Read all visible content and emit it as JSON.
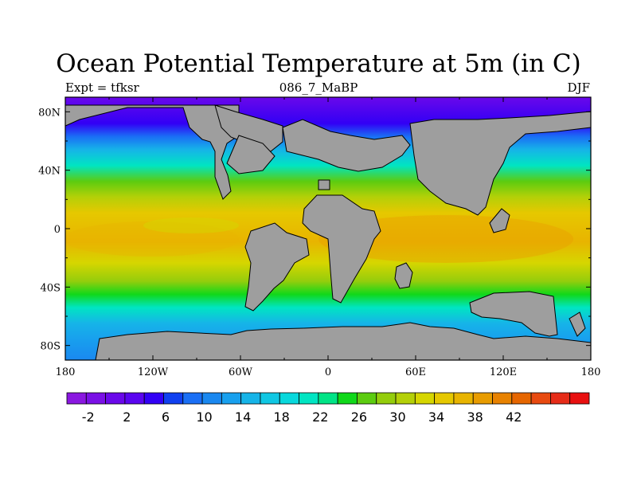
{
  "title": "Ocean Potential Temperature at 5m (in C)",
  "left_label": "Expt = tfksr",
  "center_label": "086_7_MaBP",
  "right_label": "DJF",
  "map": {
    "lon_range": [
      -180,
      180
    ],
    "lat_range": [
      -90,
      90
    ],
    "x_ticks": [
      {
        "lon": -180,
        "label": "180"
      },
      {
        "lon": -120,
        "label": "120W"
      },
      {
        "lon": -60,
        "label": "60W"
      },
      {
        "lon": 0,
        "label": "0"
      },
      {
        "lon": 60,
        "label": "60E"
      },
      {
        "lon": 120,
        "label": "120E"
      },
      {
        "lon": 180,
        "label": "180"
      }
    ],
    "y_ticks": [
      {
        "lat": 80,
        "label": "80N"
      },
      {
        "lat": 40,
        "label": "40N"
      },
      {
        "lat": 0,
        "label": "0"
      },
      {
        "lat": -40,
        "label": "40S"
      },
      {
        "lat": -80,
        "label": "80S"
      }
    ],
    "land_color": "#9e9e9e"
  },
  "colorbar": {
    "labels": [
      "-2",
      "2",
      "6",
      "10",
      "14",
      "18",
      "22",
      "26",
      "30",
      "34",
      "38",
      "42"
    ],
    "colors": [
      "#8a17e0",
      "#7a10e6",
      "#6a08ea",
      "#5a05f0",
      "#3200f5",
      "#1040f0",
      "#1a6ff5",
      "#1a88f0",
      "#18a0ee",
      "#16b4e8",
      "#10c7e3",
      "#08d8dc",
      "#00e5c2",
      "#00e486",
      "#10d81a",
      "#5ccc10",
      "#94cd0c",
      "#b4d008",
      "#d6d600",
      "#e6c800",
      "#e8b400",
      "#e89c00",
      "#e88200",
      "#e66600",
      "#e84a10",
      "#e62c18",
      "#e81010"
    ]
  }
}
